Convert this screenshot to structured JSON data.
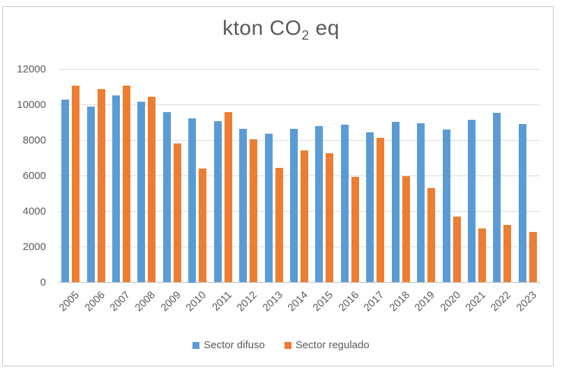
{
  "chart_data": {
    "type": "bar",
    "title": "kton CO2 eq",
    "title_parts": [
      "kton CO",
      "2",
      " eq"
    ],
    "xlabel": "",
    "ylabel": "",
    "categories": [
      "2005",
      "2006",
      "2007",
      "2008",
      "2009",
      "2010",
      "2011",
      "2012",
      "2013",
      "2014",
      "2015",
      "2016",
      "2017",
      "2018",
      "2019",
      "2020",
      "2021",
      "2022",
      "2023"
    ],
    "series": [
      {
        "name": "Sector difuso",
        "color": "#5B9BD5",
        "values": [
          10280,
          9890,
          10540,
          10190,
          9600,
          9250,
          9090,
          8640,
          8360,
          8660,
          8820,
          8890,
          8470,
          9050,
          8980,
          8600,
          9160,
          9560,
          8940
        ]
      },
      {
        "name": "Sector regulado",
        "color": "#ED7D31",
        "values": [
          11090,
          10870,
          11090,
          10440,
          7820,
          6420,
          9570,
          8050,
          6440,
          7420,
          7260,
          5950,
          8150,
          5990,
          5330,
          3720,
          3020,
          3240,
          2840
        ]
      }
    ],
    "ylim": [
      0,
      12000
    ],
    "ytick_step": 2000,
    "ytick_labels": [
      "0",
      "2000",
      "4000",
      "6000",
      "8000",
      "10000",
      "12000"
    ],
    "grid": true,
    "legend_position": "bottom",
    "colors": {
      "series_difuso": "#5B9BD5",
      "series_regulado": "#ED7D31",
      "text": "#595959",
      "gridline": "#D9D9D9",
      "axis_line": "#BFBFBF",
      "frame_border": "#C9C9C9",
      "background": "#FFFFFF"
    }
  }
}
